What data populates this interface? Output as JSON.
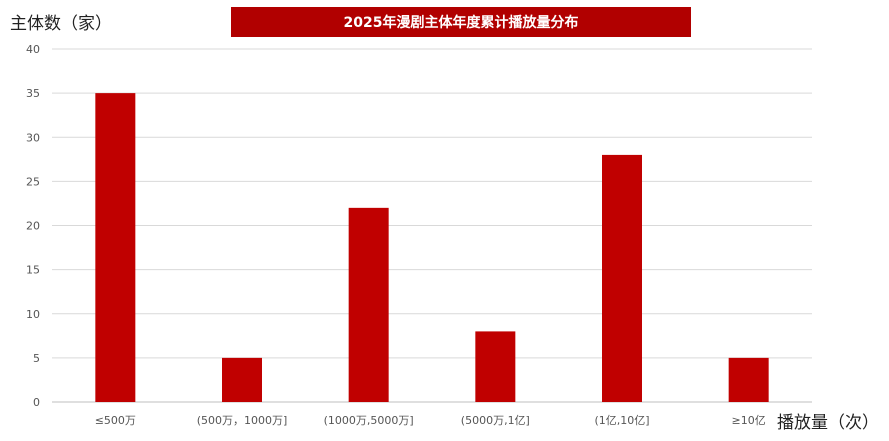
{
  "chart_data": {
    "type": "bar",
    "title": "2025年漫剧主体年度累计播放量分布",
    "ylabel": "主体数（家）",
    "xlabel": "播放量（次）",
    "categories": [
      "≤500万",
      "(500万，1000万]",
      "(1000万,5000万]",
      "(5000万,1亿]",
      "(1亿,10亿]",
      "≥10亿"
    ],
    "values": [
      35,
      5,
      22,
      8,
      28,
      5
    ],
    "ylim": [
      0,
      40
    ],
    "yticks": [
      0,
      5,
      10,
      15,
      20,
      25,
      30,
      35,
      40
    ],
    "grid": true,
    "legend": "none",
    "bar_color": "#c00000",
    "title_bg_color": "#b10000"
  }
}
